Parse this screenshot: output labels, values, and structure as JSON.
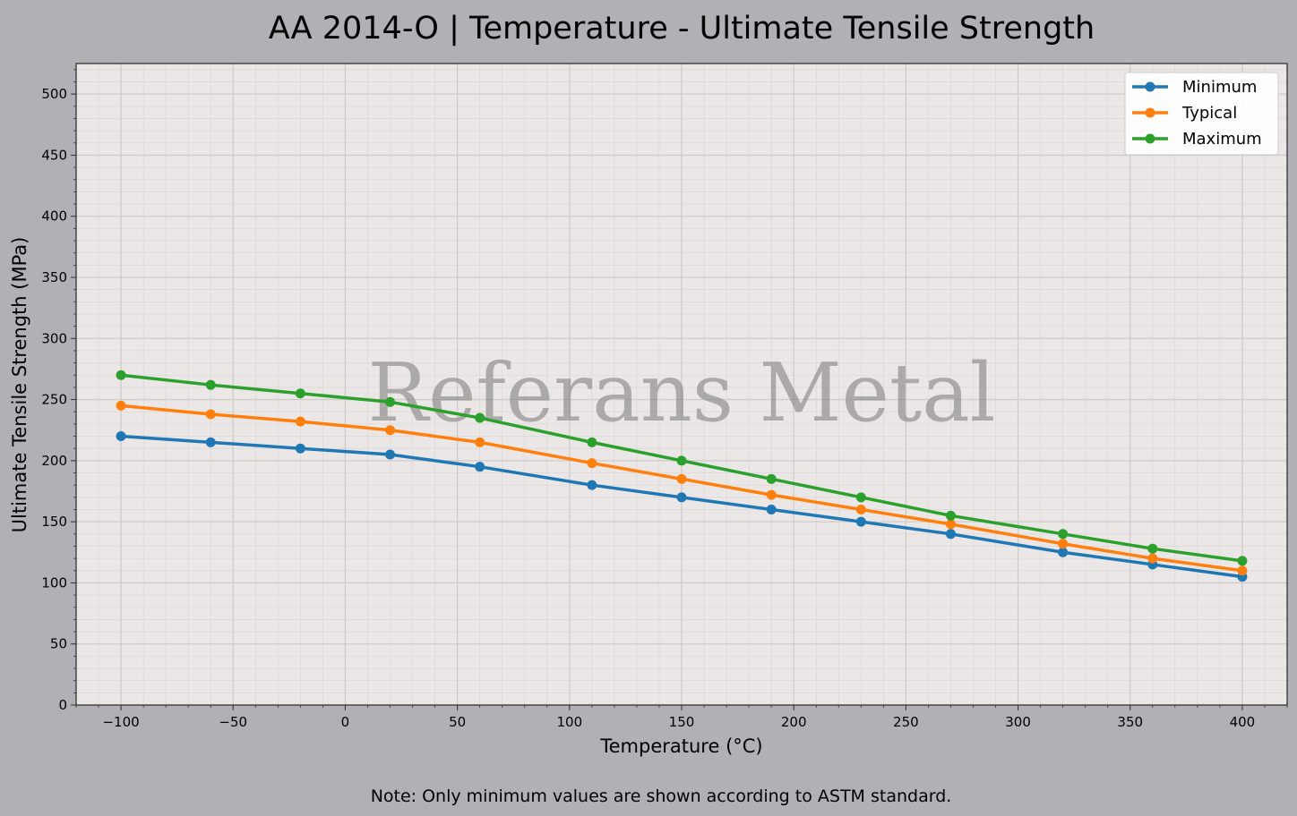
{
  "chart_data": {
    "type": "line",
    "title": "AA 2014-O | Temperature - Ultimate Tensile Strength",
    "xlabel": "Temperature (°C)",
    "ylabel": "Ultimate Tensile Strength (MPa)",
    "xlim": [
      -120,
      420
    ],
    "ylim": [
      0,
      525
    ],
    "xticks": [
      -100,
      -50,
      0,
      50,
      100,
      150,
      200,
      250,
      300,
      350,
      400
    ],
    "xtick_labels": [
      "−100",
      "−50",
      "0",
      "50",
      "100",
      "150",
      "200",
      "250",
      "300",
      "350",
      "400"
    ],
    "yticks": [
      0,
      50,
      100,
      150,
      200,
      250,
      300,
      350,
      400,
      450,
      500
    ],
    "grid": true,
    "legend_position": "top-right",
    "x": [
      -100,
      -60,
      -20,
      20,
      60,
      110,
      150,
      190,
      230,
      270,
      320,
      360,
      400
    ],
    "series": [
      {
        "name": "Minimum",
        "color": "#1f77b4",
        "values": [
          220,
          215,
          210,
          205,
          195,
          180,
          170,
          160,
          150,
          140,
          125,
          115,
          105
        ]
      },
      {
        "name": "Typical",
        "color": "#ff7f0e",
        "values": [
          245,
          238,
          232,
          225,
          215,
          198,
          185,
          172,
          160,
          148,
          132,
          120,
          110
        ]
      },
      {
        "name": "Maximum",
        "color": "#2ca02c",
        "values": [
          270,
          262,
          255,
          248,
          235,
          215,
          200,
          185,
          170,
          155,
          140,
          128,
          118
        ]
      }
    ],
    "watermark": "Referans Metal",
    "note": "Note: Only minimum values are shown according to ASTM standard."
  }
}
